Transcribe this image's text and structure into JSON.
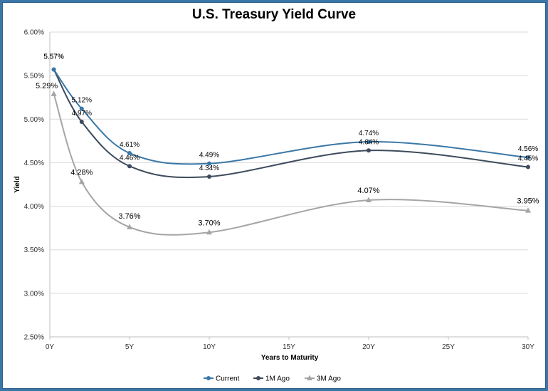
{
  "chart_data": {
    "type": "line",
    "title": "U.S. Treasury Yield Curve",
    "xlabel": "Years to Maturity",
    "ylabel": "Yield",
    "xlim": [
      0,
      30
    ],
    "ylim": [
      2.5,
      6.0
    ],
    "x_ticks": [
      0,
      5,
      10,
      15,
      20,
      25,
      30
    ],
    "x_tick_labels": [
      "0Y",
      "5Y",
      "10Y",
      "15Y",
      "20Y",
      "25Y",
      "30Y"
    ],
    "y_ticks": [
      2.5,
      3.0,
      3.5,
      4.0,
      4.5,
      5.0,
      5.5,
      6.0
    ],
    "y_tick_labels": [
      "2.50%",
      "3.00%",
      "3.50%",
      "4.00%",
      "4.50%",
      "5.00%",
      "5.50%",
      "6.00%"
    ],
    "grid": "horizontal",
    "legend_position": "bottom",
    "series": [
      {
        "name": "Current",
        "color": "#3a78a8",
        "marker": "circle",
        "x": [
          0.25,
          2,
          5,
          10,
          20,
          30
        ],
        "y": [
          5.57,
          5.12,
          4.61,
          4.49,
          4.74,
          4.56
        ],
        "labels": [
          "5.57%",
          "5.12%",
          "4.61%",
          "4.49%",
          "4.74%",
          "4.56%"
        ]
      },
      {
        "name": "1M Ago",
        "color": "#3d4b5c",
        "marker": "circle",
        "x": [
          0.25,
          2,
          5,
          10,
          20,
          30
        ],
        "y": [
          5.57,
          4.97,
          4.46,
          4.34,
          4.64,
          4.45
        ],
        "labels": [
          "5.57%",
          "4.97%",
          "4.46%",
          "4.34%",
          "4.64%",
          "4.45%"
        ]
      },
      {
        "name": "3M Ago",
        "color": "#a5a5a5",
        "marker": "triangle",
        "x": [
          0.25,
          2,
          5,
          10,
          20,
          30
        ],
        "y": [
          5.29,
          4.28,
          3.76,
          3.7,
          4.07,
          3.95
        ],
        "labels": [
          "5.29%",
          "4.28%",
          "3.76%",
          "3.70%",
          "4.07%",
          "3.95%"
        ]
      }
    ]
  }
}
